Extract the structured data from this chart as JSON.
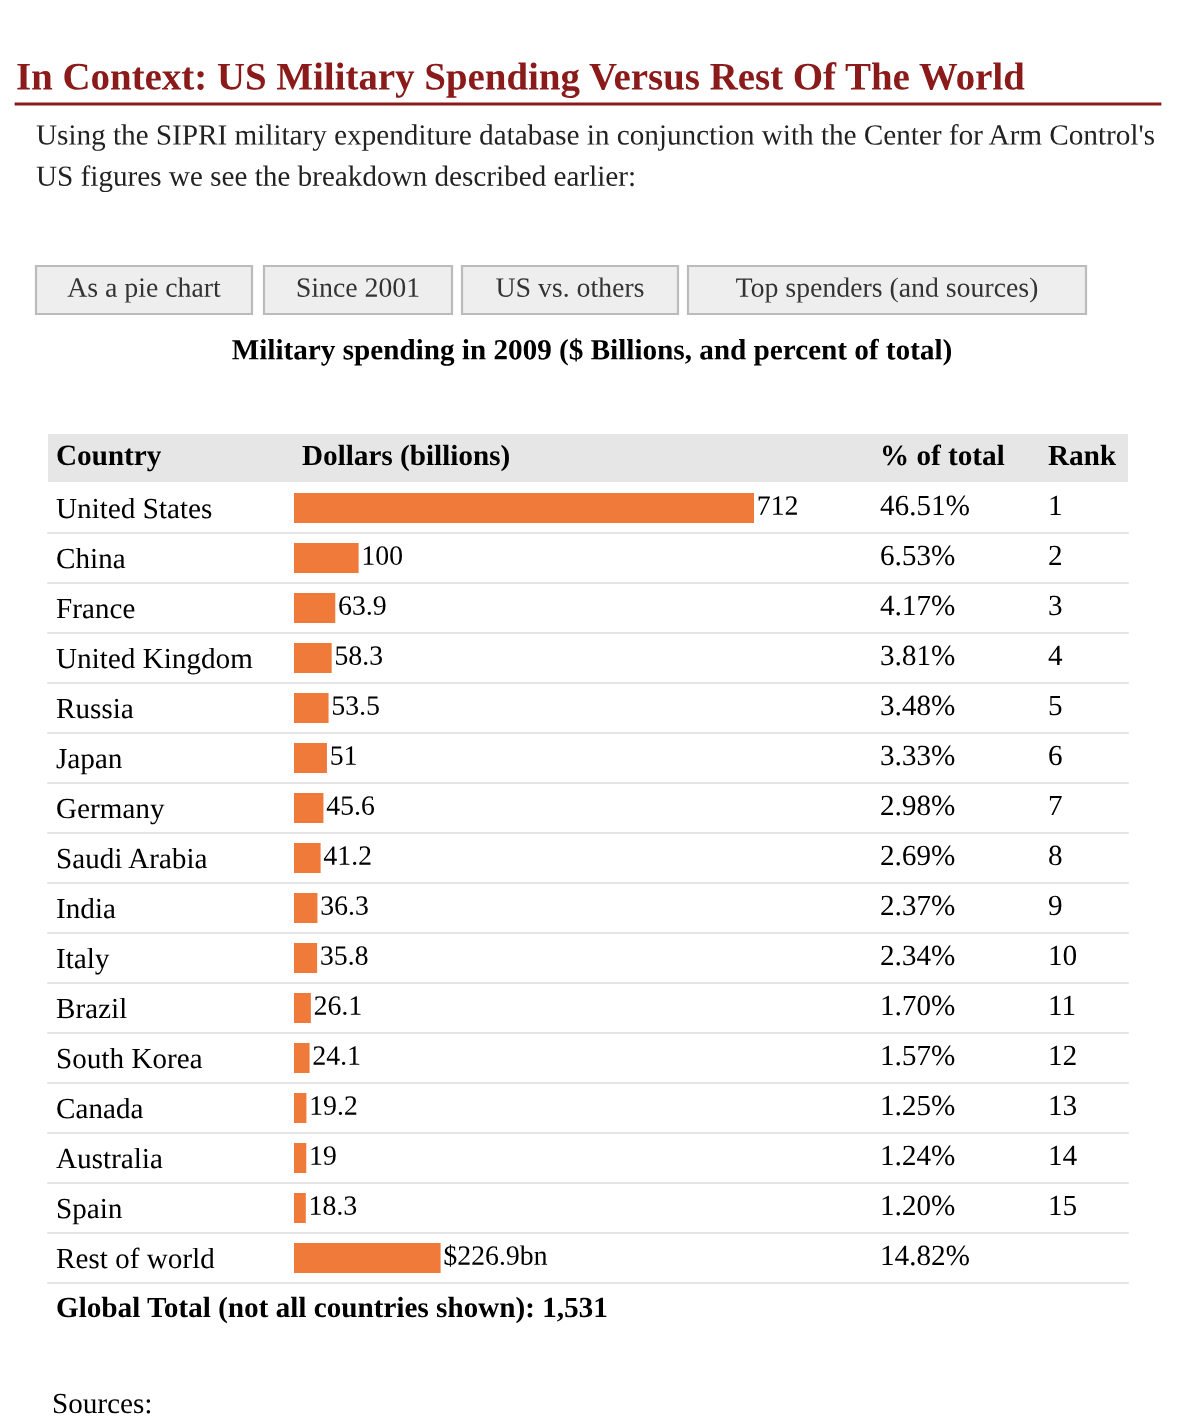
{
  "chart_data": {
    "type": "bar",
    "orientation": "horizontal",
    "title": "In Context: US Military Spending Versus Rest Of The World",
    "subtitle": "Using the SIPRI military expenditure database in conjunction with the Center for Arm Control's US figures we see the breakdown described earlier:",
    "xlabel": "Military spending in 2009 ($ Billions, and percent of total)",
    "categories": [
      "United States",
      "China",
      "France",
      "United Kingdom",
      "Russia",
      "Japan",
      "Germany",
      "Saudi Arabia",
      "India",
      "Italy",
      "Brazil",
      "South Korea",
      "Canada",
      "Australia",
      "Spain",
      "Rest of world"
    ],
    "values": [
      712,
      100,
      63.9,
      58.3,
      53.5,
      51,
      45.6,
      41.2,
      36.3,
      35.8,
      26.1,
      24.1,
      19.2,
      19,
      18.3,
      226.9
    ],
    "value_labels": [
      "712",
      "100",
      "63.9",
      "58.3",
      "53.5",
      "51",
      "45.6",
      "41.2",
      "36.3",
      "35.8",
      "26.1",
      "24.1",
      "19.2",
      "19",
      "18.3",
      "$226.9bn"
    ],
    "color": "#f07a3a",
    "annotations": [
      "As a pie chart",
      "Since 2001",
      "US vs. others",
      "Top spenders (and sources)",
      "Country",
      "Dollars (billions)",
      "% of total",
      "Rank",
      "46.51%",
      "6.53%",
      "4.17%",
      "3.81%",
      "3.48%",
      "3.33%",
      "2.98%",
      "2.69%",
      "2.37%",
      "2.34%",
      "1.70%",
      "1.57%",
      "1.25%",
      "1.24%",
      "1.20%",
      "14.82%",
      "1",
      "2",
      "3",
      "4",
      "5",
      "6",
      "7",
      "8",
      "9",
      "10",
      "11",
      "12",
      "13",
      "14",
      "15",
      "Global Total (not all countries shown): 1,531",
      "Sources:"
    ]
  }
}
